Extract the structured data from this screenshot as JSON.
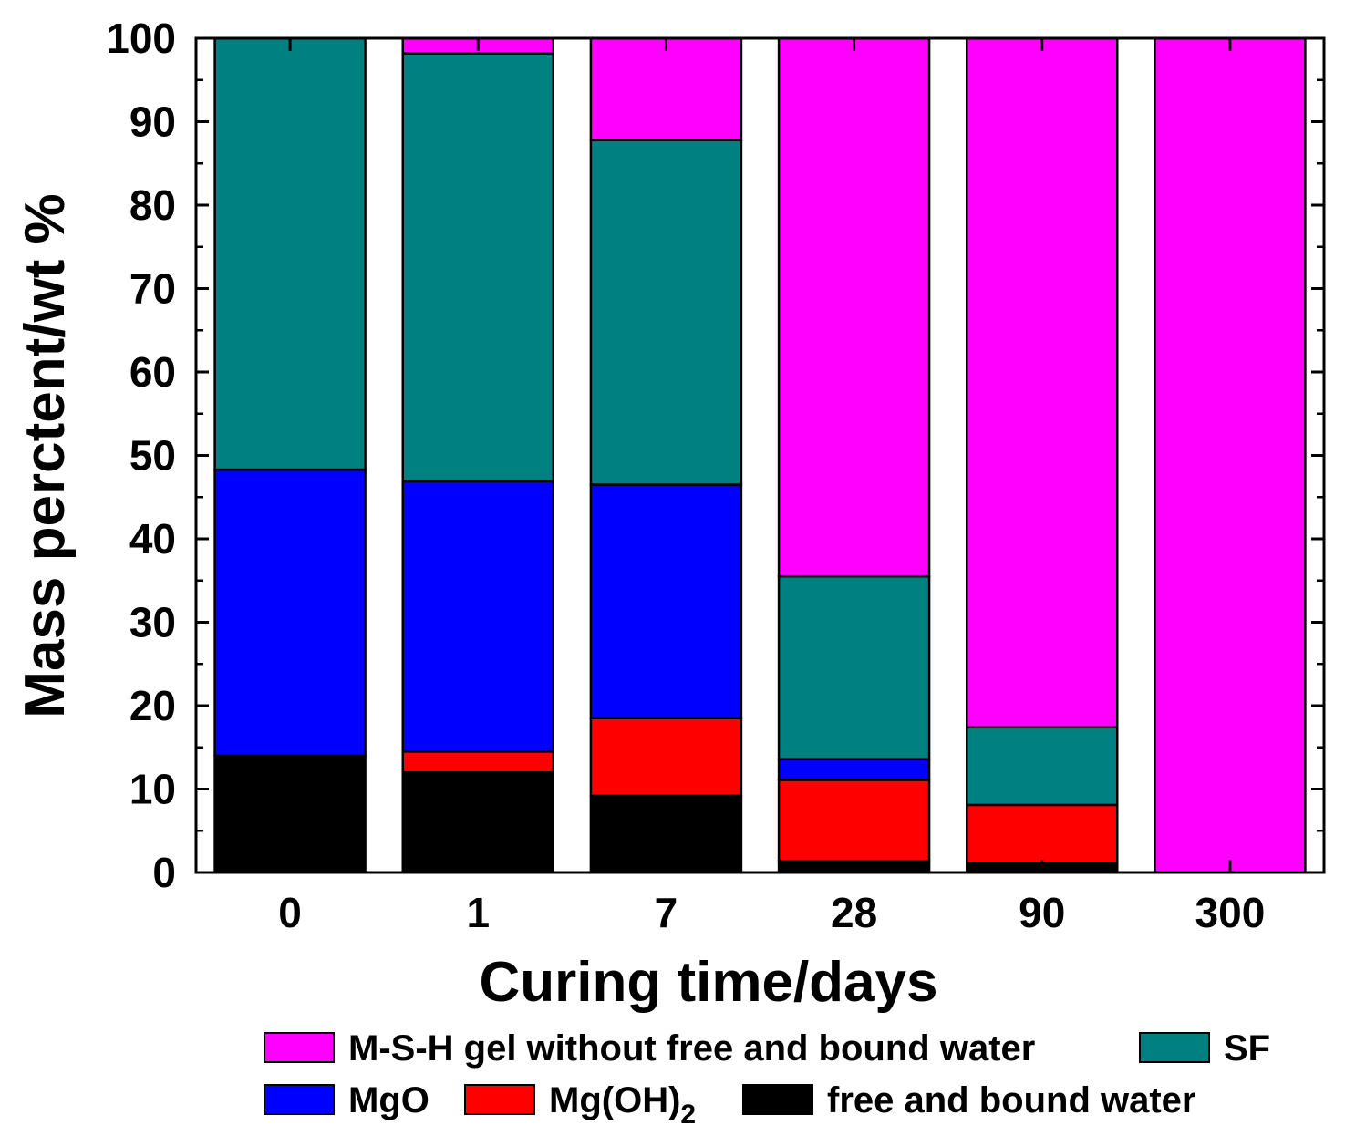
{
  "chart_data": {
    "type": "bar",
    "stacked": true,
    "xlabel": "Curing time/days",
    "ylabel": "Mass perctent/wt %",
    "ylim": [
      0,
      100
    ],
    "yticks": [
      0,
      10,
      20,
      30,
      40,
      50,
      60,
      70,
      80,
      90,
      100
    ],
    "categories": [
      "0",
      "1",
      "7",
      "28",
      "90",
      "300"
    ],
    "series": [
      {
        "name": "free and bound water",
        "color": "#000000",
        "values": [
          14,
          12,
          9.2,
          1.4,
          1.1,
          0
        ]
      },
      {
        "name": "Mg(OH)2",
        "label_main": "Mg(OH)",
        "label_sub": "2",
        "color": "#ff0000",
        "values": [
          0,
          2.5,
          9.3,
          9.7,
          7.0,
          0
        ]
      },
      {
        "name": "MgO",
        "color": "#0000ff",
        "values": [
          34.3,
          32.4,
          28.0,
          2.5,
          0,
          0
        ]
      },
      {
        "name": "SF",
        "color": "#008080",
        "values": [
          51.7,
          51.3,
          41.3,
          21.9,
          9.3,
          0
        ]
      },
      {
        "name": "M-S-H gel without free and bound water",
        "color": "#ff00ff",
        "values": [
          0,
          1.8,
          12.2,
          64.5,
          82.6,
          100
        ]
      }
    ],
    "legend": {
      "placement": "bottom",
      "order": [
        "M-S-H gel without free and bound water",
        "SF",
        "MgO",
        "Mg(OH)2",
        "free and bound water"
      ]
    }
  }
}
